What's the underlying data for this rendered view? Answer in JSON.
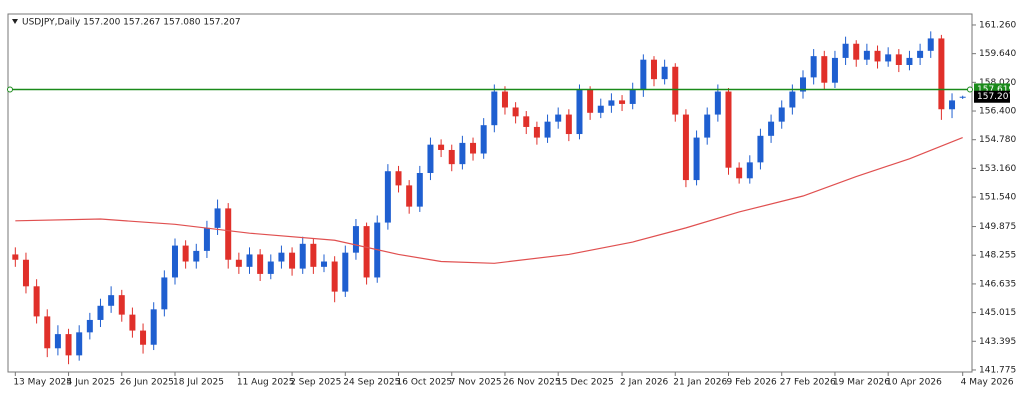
{
  "chart_data": {
    "type": "candlestick",
    "header": "USDJPY,Daily  157.200 157.267 157.080 157.207",
    "up_color": "#1f5fd0",
    "down_color": "#e0302a",
    "open": [
      148.3,
      148.0,
      146.5,
      144.8,
      143.0,
      143.8,
      142.6,
      143.9,
      144.6,
      145.4,
      146.0,
      144.9,
      144.0,
      143.2,
      145.2,
      147.0,
      148.8,
      147.9,
      148.5,
      149.8,
      150.9,
      148.0,
      147.6,
      148.3,
      147.2,
      147.9,
      148.4,
      147.5,
      148.9,
      147.6,
      147.9,
      146.2,
      148.4,
      149.9,
      147.0,
      150.1,
      153.0,
      152.2,
      151.0,
      152.9,
      154.5,
      154.2,
      153.4,
      154.6,
      154.0,
      155.6,
      157.5,
      156.6,
      156.1,
      155.5,
      154.9,
      155.8,
      156.2,
      155.1,
      157.6,
      156.3,
      156.7,
      157.0,
      156.8,
      157.6,
      159.3,
      158.2,
      158.9,
      156.2,
      152.5,
      154.9,
      156.2,
      157.5,
      153.2,
      152.6,
      153.5,
      155.0,
      155.8,
      156.6,
      157.5,
      158.3,
      159.5,
      158.0,
      159.4,
      160.2,
      159.3,
      159.8,
      159.2,
      159.6,
      159.0,
      159.4,
      159.8,
      160.5,
      156.5,
      157.2
    ],
    "high": [
      148.7,
      148.4,
      146.9,
      145.2,
      144.3,
      144.1,
      144.3,
      145.0,
      145.8,
      146.5,
      146.3,
      145.3,
      144.4,
      145.6,
      147.4,
      149.2,
      149.1,
      148.9,
      150.2,
      151.4,
      151.2,
      148.4,
      148.7,
      148.6,
      148.3,
      148.8,
      148.7,
      149.3,
      149.2,
      148.3,
      148.2,
      148.8,
      150.3,
      150.1,
      150.5,
      153.4,
      153.3,
      152.5,
      153.3,
      154.9,
      154.8,
      154.5,
      155.0,
      154.9,
      156.0,
      157.9,
      157.8,
      156.9,
      156.4,
      155.8,
      156.2,
      156.6,
      156.5,
      157.9,
      157.8,
      157.1,
      157.4,
      157.3,
      158.0,
      159.6,
      159.5,
      159.3,
      159.1,
      156.5,
      155.3,
      156.6,
      157.9,
      157.7,
      153.5,
      153.9,
      155.4,
      156.2,
      157.0,
      157.9,
      158.7,
      159.9,
      159.8,
      159.8,
      160.6,
      160.4,
      160.2,
      160.1,
      160.0,
      159.9,
      159.8,
      160.2,
      160.9,
      160.7,
      157.4,
      157.267
    ],
    "low": [
      147.6,
      146.1,
      144.4,
      142.5,
      142.6,
      142.1,
      142.3,
      143.5,
      144.2,
      145.0,
      144.5,
      143.6,
      142.7,
      142.9,
      144.8,
      146.6,
      147.5,
      147.5,
      148.1,
      149.4,
      147.5,
      147.2,
      147.2,
      146.8,
      146.9,
      147.5,
      147.1,
      147.2,
      147.2,
      147.3,
      145.6,
      145.9,
      148.0,
      146.6,
      146.7,
      149.7,
      151.8,
      150.6,
      150.7,
      152.5,
      153.8,
      153.0,
      153.1,
      153.6,
      153.7,
      155.2,
      156.2,
      155.7,
      155.1,
      154.5,
      154.6,
      155.4,
      154.7,
      154.8,
      155.9,
      156.0,
      156.3,
      156.4,
      156.5,
      157.2,
      157.8,
      157.9,
      155.8,
      152.1,
      152.2,
      154.5,
      155.8,
      152.8,
      152.3,
      152.3,
      153.1,
      154.6,
      155.4,
      156.2,
      157.1,
      157.9,
      157.6,
      157.7,
      159.0,
      158.9,
      159.0,
      158.8,
      158.9,
      158.6,
      158.7,
      159.0,
      159.4,
      155.9,
      156.0,
      157.08
    ],
    "close": [
      148.0,
      146.5,
      144.8,
      143.0,
      143.8,
      142.6,
      143.9,
      144.6,
      145.4,
      146.0,
      144.9,
      144.0,
      143.2,
      145.2,
      147.0,
      148.8,
      147.9,
      148.5,
      149.8,
      150.9,
      148.0,
      147.6,
      148.3,
      147.2,
      147.9,
      148.4,
      147.5,
      148.9,
      147.6,
      147.9,
      146.2,
      148.4,
      149.9,
      147.0,
      150.1,
      153.0,
      152.2,
      151.0,
      152.9,
      154.5,
      154.2,
      153.4,
      154.6,
      154.0,
      155.6,
      157.5,
      156.6,
      156.1,
      155.5,
      154.9,
      155.8,
      156.2,
      155.1,
      157.6,
      156.3,
      156.7,
      157.0,
      156.8,
      157.6,
      159.3,
      158.2,
      158.9,
      156.2,
      152.5,
      154.9,
      156.2,
      157.5,
      153.2,
      152.6,
      153.5,
      155.0,
      155.8,
      156.6,
      157.5,
      158.3,
      159.5,
      158.0,
      159.4,
      160.2,
      159.3,
      159.8,
      159.2,
      159.6,
      159.0,
      159.4,
      159.8,
      160.5,
      156.5,
      157.0,
      157.207
    ],
    "ma": {
      "color": "#e05050",
      "x": [
        0,
        8,
        15,
        22,
        30,
        36,
        40,
        45,
        52,
        58,
        63,
        68,
        74,
        79,
        84,
        89
      ],
      "values": [
        150.2,
        150.3,
        150.0,
        149.5,
        149.1,
        148.3,
        147.9,
        147.8,
        148.3,
        149.0,
        149.8,
        150.7,
        151.6,
        152.7,
        153.7,
        154.9
      ]
    },
    "level": 157.619,
    "level_color": "#1a8a1a",
    "last_price": 157.207,
    "xlim": [
      -0.5,
      89.5
    ],
    "xticks": [
      {
        "value": 0,
        "label": "13 May 2025"
      },
      {
        "value": 5,
        "label": "4 Jun 2025"
      },
      {
        "value": 10,
        "label": "26 Jun 2025"
      },
      {
        "value": 15,
        "label": "18 Jul 2025"
      },
      {
        "value": 21,
        "label": "11 Aug 2025"
      },
      {
        "value": 26,
        "label": "2 Sep 2025"
      },
      {
        "value": 31,
        "label": "24 Sep 2025"
      },
      {
        "value": 36,
        "label": "16 Oct 2025"
      },
      {
        "value": 41,
        "label": "7 Nov 2025"
      },
      {
        "value": 46,
        "label": "26 Nov 2025"
      },
      {
        "value": 51,
        "label": "15 Dec 2025"
      },
      {
        "value": 57,
        "label": "2 Jan 2026"
      },
      {
        "value": 62,
        "label": "21 Jan 2026"
      },
      {
        "value": 67,
        "label": "9 Feb 2026"
      },
      {
        "value": 72,
        "label": "27 Feb 2026"
      },
      {
        "value": 77,
        "label": "19 Mar 2026"
      },
      {
        "value": 82,
        "label": "10 Apr 2026"
      },
      {
        "value": 89,
        "label": "4 May 2026"
      }
    ],
    "ylim": [
      141.66,
      161.88
    ],
    "yticks": [
      {
        "value": 141.775,
        "label": "141.775"
      },
      {
        "value": 143.395,
        "label": "143.395"
      },
      {
        "value": 145.015,
        "label": "145.015"
      },
      {
        "value": 146.635,
        "label": "146.635"
      },
      {
        "value": 148.255,
        "label": "148.255"
      },
      {
        "value": 149.875,
        "label": "149.875"
      },
      {
        "value": 151.54,
        "label": "151.540"
      },
      {
        "value": 153.16,
        "label": "153.160"
      },
      {
        "value": 154.78,
        "label": "154.780"
      },
      {
        "value": 156.4,
        "label": "156.400"
      },
      {
        "value": 158.02,
        "label": "158.020"
      },
      {
        "value": 159.64,
        "label": "159.640"
      },
      {
        "value": 161.26,
        "label": "161.260"
      }
    ]
  }
}
